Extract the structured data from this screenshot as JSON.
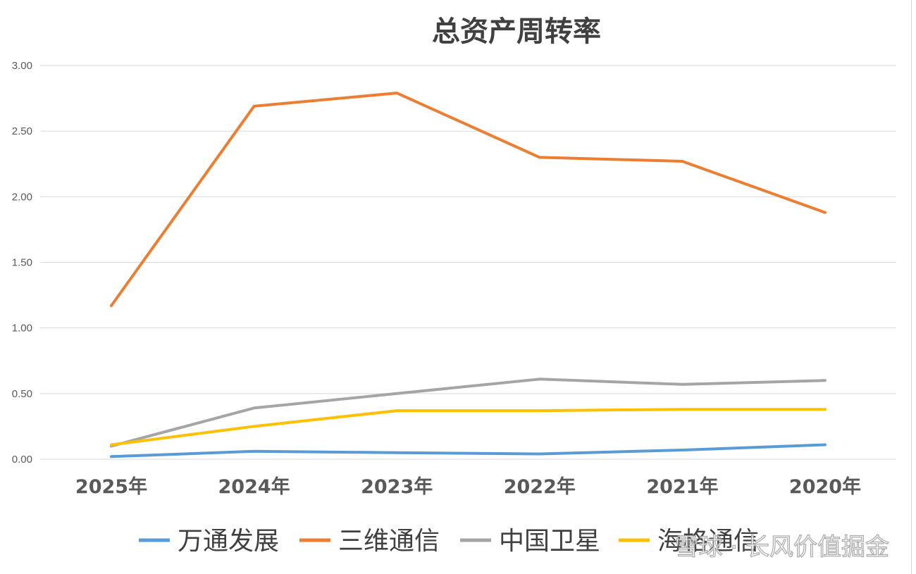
{
  "chart_data": {
    "type": "line",
    "title": "总资产周转率",
    "categories": [
      "2025年",
      "2024年",
      "2023年",
      "2022年",
      "2021年",
      "2020年"
    ],
    "ylim": [
      0,
      3
    ],
    "yticks": [
      "0.00",
      "0.50",
      "1.00",
      "1.50",
      "2.00",
      "2.50",
      "3.00"
    ],
    "grid": true,
    "legend_position": "bottom",
    "series": [
      {
        "name": "万通发展",
        "color": "#5b9bd5",
        "values": [
          0.02,
          0.06,
          0.05,
          0.04,
          0.07,
          0.11
        ]
      },
      {
        "name": "三维通信",
        "color": "#ed7d31",
        "values": [
          1.17,
          2.69,
          2.79,
          2.3,
          2.27,
          1.88
        ]
      },
      {
        "name": "中国卫星",
        "color": "#a5a5a5",
        "values": [
          0.1,
          0.39,
          0.5,
          0.61,
          0.57,
          0.6
        ]
      },
      {
        "name": "海格通信",
        "color": "#ffc000",
        "values": [
          0.11,
          0.25,
          0.37,
          0.37,
          0.38,
          0.38
        ]
      }
    ]
  },
  "watermark": "雪球 · 长风价值掘金"
}
